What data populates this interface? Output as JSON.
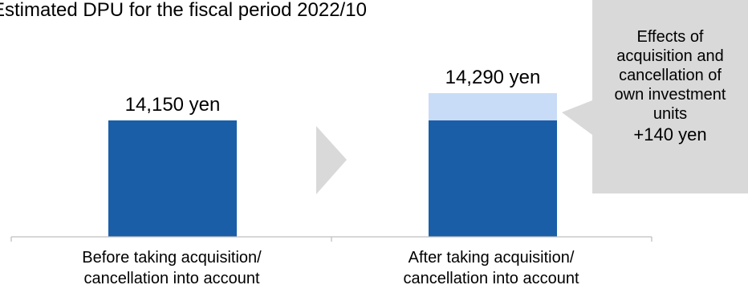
{
  "chart_data": {
    "type": "bar",
    "title": "Estimated DPU for the fiscal period 2022/10",
    "categories": [
      "Before taking acquisition/ cancellation into account",
      "After taking acquisition/ cancellation into account"
    ],
    "category_lines": [
      [
        "Before taking acquisition/",
        "cancellation into account"
      ],
      [
        "After taking acquisition/",
        "cancellation into account"
      ]
    ],
    "series": [
      {
        "values": [
          14150,
          14150
        ],
        "color": "#1a5ea8"
      },
      {
        "values": [
          0,
          140
        ],
        "color": "#c9dcf7"
      }
    ],
    "totals": [
      14150,
      14290
    ],
    "data_labels": [
      "14,150 yen",
      "14,290 yen"
    ],
    "callout": {
      "lines": [
        "Effects of",
        "acquisition and",
        "cancellation of",
        "own investment",
        "units"
      ],
      "value": "+140 yen",
      "color": "#d9d9d9"
    },
    "arrow_color": "#d9d9d9",
    "axis_color": "#bfbfbf",
    "grid": false
  }
}
